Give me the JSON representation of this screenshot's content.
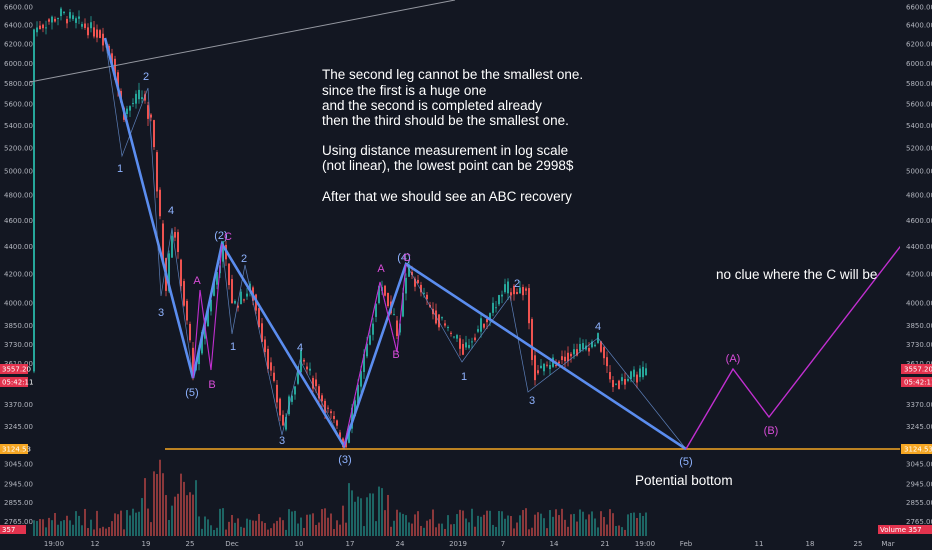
{
  "chart_data": {
    "type": "candlestick",
    "log_scale": true,
    "y_ticks": [
      6600,
      6400,
      6200,
      6000,
      5800,
      5600,
      5400,
      5200,
      5000,
      4800,
      4600,
      4400,
      4200,
      4000,
      3850,
      3730,
      3610,
      3370,
      3245,
      3045,
      2945,
      2855,
      2765
    ],
    "y_tick_labels": [
      "6600.00",
      "6400.00",
      "6200.00",
      "6000.00",
      "5800.00",
      "5600.00",
      "5400.00",
      "5200.00",
      "5000.00",
      "4800.00",
      "4600.00",
      "4400.00",
      "4200.00",
      "4000.00",
      "3850.00",
      "3730.00",
      "3610.00",
      "3370.00",
      "3245.00",
      "3045.00",
      "2945.00",
      "2855.00",
      "2765.00"
    ],
    "x_tick_labels": [
      "19:00",
      "12",
      "19",
      "25",
      "Dec",
      "10",
      "17",
      "24",
      "2019",
      "7",
      "14",
      "21",
      "19:00",
      "Feb",
      "11",
      "18",
      "25",
      "Mar"
    ],
    "price_badges": [
      {
        "label": "3557.20",
        "value": 3557.2,
        "color": "#e2334e"
      },
      {
        "label": "05:42:11",
        "value": 3500,
        "color": "#e2334e"
      },
      {
        "label": "3124.53",
        "value": 3124.53,
        "color": "#f5a623"
      }
    ],
    "bottom_badges": {
      "volume_left": "357",
      "volume_right": "Volume",
      "volume_value": "357"
    },
    "support_level": {
      "value": 3124.53,
      "color": "#f5a623"
    },
    "notes": [
      "The second leg cannot be the smallest one.",
      "since the first is a huge one",
      "and the second is completed already",
      "then the third should be the smallest one.",
      "",
      "Using distance measurement in log scale",
      "(not linear), the lowest point can be 2998$",
      "",
      "After that we should see an ABC recovery"
    ],
    "annotation_right": "no clue where the C will be",
    "annotation_bottom": "Potential bottom",
    "projection_labels": [
      "(A)",
      "(B)"
    ],
    "wave_labels": [
      {
        "text": "2",
        "color": "#8fb3ff"
      },
      {
        "text": "1",
        "color": "#8fb3ff"
      },
      {
        "text": "3",
        "color": "#8fb3ff"
      },
      {
        "text": "4",
        "color": "#8fb3ff"
      },
      {
        "text": "(5)",
        "color": "#8fb3ff"
      },
      {
        "text": "(2)",
        "color": "#8fb3ff"
      },
      {
        "text": "C",
        "color": "#d84cd8"
      },
      {
        "text": "A",
        "color": "#d84cd8"
      },
      {
        "text": "B",
        "color": "#d84cd8"
      },
      {
        "text": "2",
        "color": "#8fb3ff"
      },
      {
        "text": "1",
        "color": "#8fb3ff"
      },
      {
        "text": "4",
        "color": "#8fb3ff"
      },
      {
        "text": "3",
        "color": "#8fb3ff"
      },
      {
        "text": "(3)",
        "color": "#8fb3ff"
      },
      {
        "text": "A",
        "color": "#d84cd8"
      },
      {
        "text": "B",
        "color": "#d84cd8"
      },
      {
        "text": "(4)",
        "color": "#8fb3ff"
      },
      {
        "text": "C",
        "color": "#d84cd8"
      },
      {
        "text": "2",
        "color": "#8fb3ff"
      },
      {
        "text": "1",
        "color": "#8fb3ff"
      },
      {
        "text": "4",
        "color": "#8fb3ff"
      },
      {
        "text": "3",
        "color": "#8fb3ff"
      },
      {
        "text": "(5)",
        "color": "#8fb3ff"
      }
    ],
    "colors": {
      "background": "#131722",
      "up": "#26a69a",
      "down": "#ef5350",
      "wave_line": "#5b8def",
      "projection": "#c12fd0",
      "text": "#ffffff"
    }
  }
}
